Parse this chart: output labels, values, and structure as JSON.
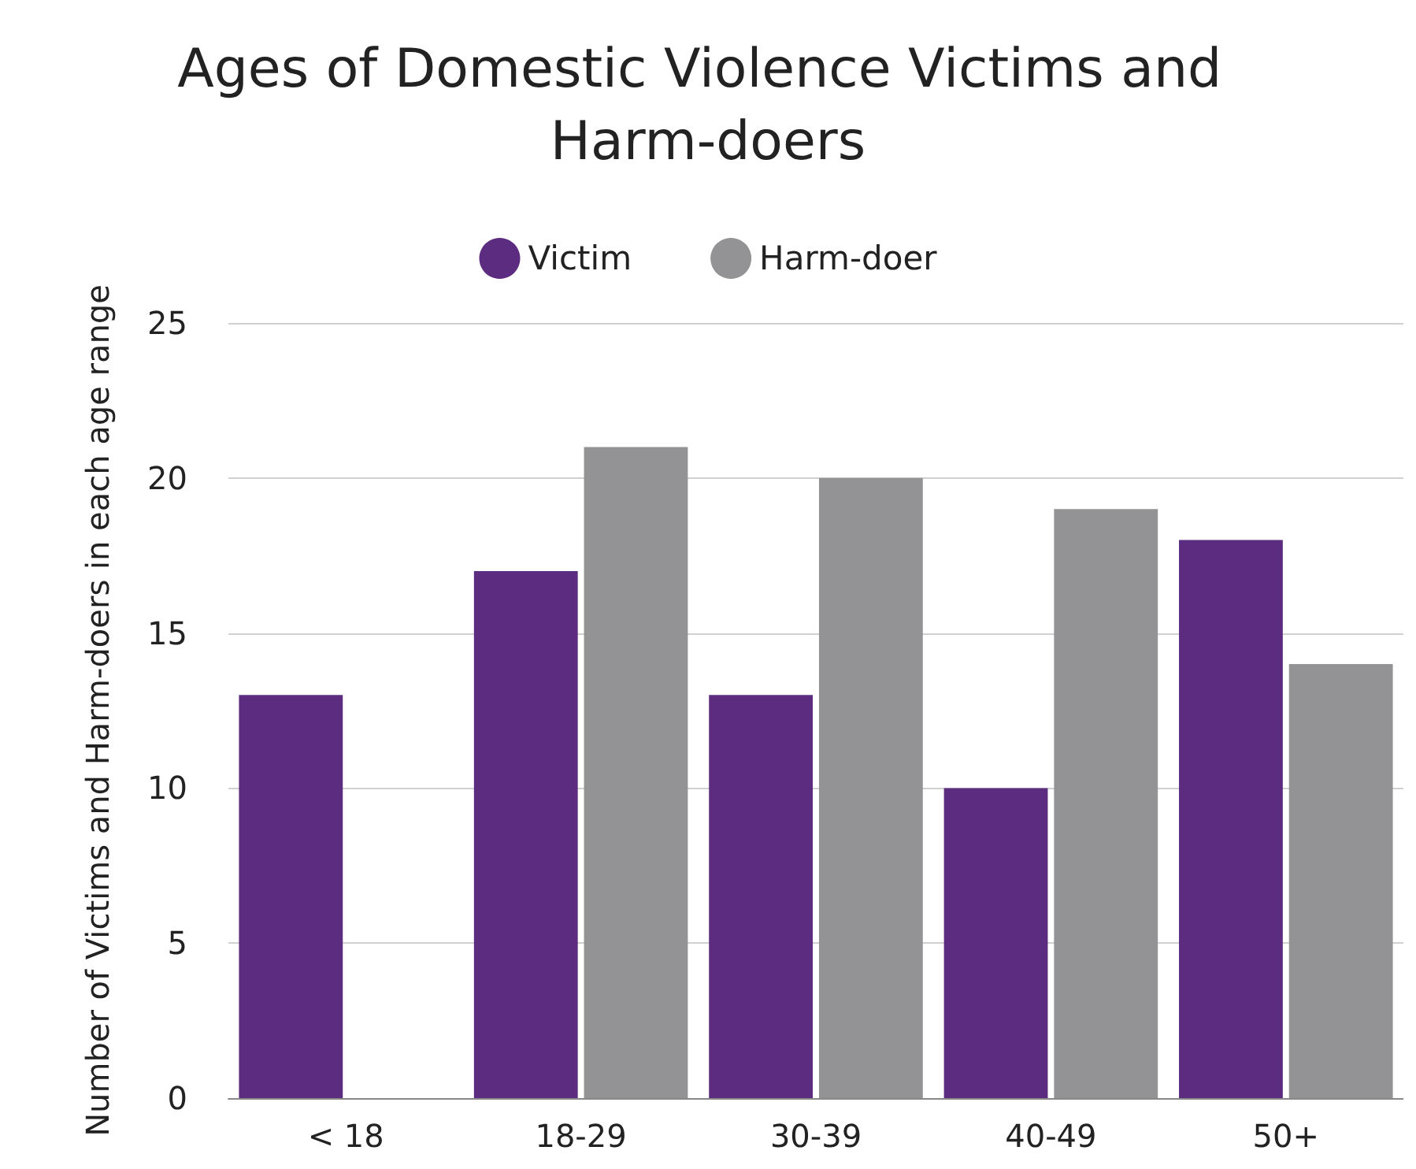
{
  "chart_data": {
    "type": "bar",
    "title": "Ages of Domestic Violence Victims and Harm-doers",
    "categories": [
      "< 18",
      "18-29",
      "30-39",
      "40-49",
      "50+"
    ],
    "series": [
      {
        "name": "Victim",
        "color": "#5b2c7f",
        "values": [
          13,
          17,
          13,
          10,
          18
        ]
      },
      {
        "name": "Harm-doer",
        "color": "#939396",
        "values": [
          0,
          21,
          20,
          19,
          14
        ]
      }
    ],
    "ylabel": "Number of Victims and Harm-doers in each age range",
    "ylim": [
      0,
      25
    ],
    "yticks": [
      0,
      5,
      10,
      15,
      20,
      25
    ],
    "grid": "y",
    "legend": "top"
  }
}
